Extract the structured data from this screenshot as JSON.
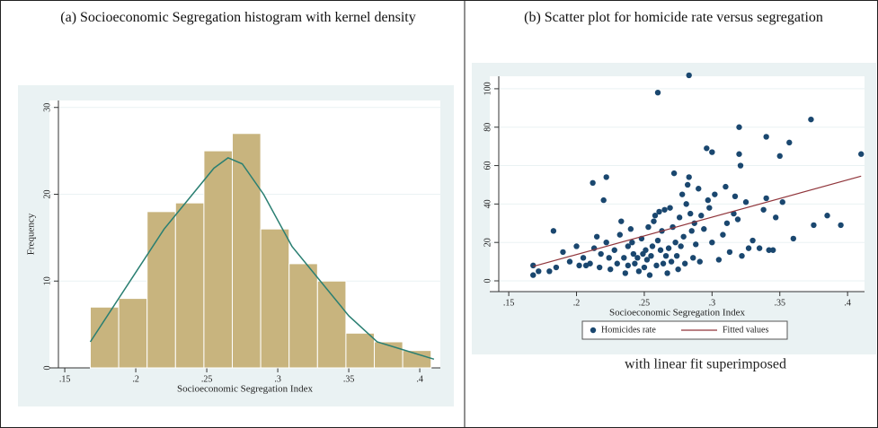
{
  "chart_data": [
    {
      "type": "histogram",
      "title": "(a)   Socioeconomic Segregation histogram with kernel density",
      "xlabel": "Socioeconomic Segregation Index",
      "ylabel": "Frequency",
      "bins": [
        0.168,
        0.188,
        0.208,
        0.228,
        0.248,
        0.268,
        0.288,
        0.308,
        0.328,
        0.348,
        0.368,
        0.388,
        0.408
      ],
      "values": [
        7,
        8,
        18,
        19,
        25,
        27,
        16,
        12,
        10,
        4,
        3,
        2
      ],
      "color": "#c8b47e",
      "density": {
        "color": "#2a7f72",
        "x": [
          0.168,
          0.18,
          0.2,
          0.22,
          0.24,
          0.255,
          0.265,
          0.275,
          0.29,
          0.31,
          0.33,
          0.35,
          0.37,
          0.39,
          0.41
        ],
        "values": [
          3,
          6,
          11,
          16,
          20,
          23,
          24.2,
          23.5,
          20,
          14,
          10,
          6,
          3,
          2,
          1
        ]
      },
      "xlim": [
        0.1392,
        0.4145
      ],
      "ylim": [
        0,
        30.8
      ],
      "xticks": [
        {
          "value": 0.15,
          "label": ".15"
        },
        {
          "value": 0.2,
          "label": ".2"
        },
        {
          "value": 0.25,
          "label": ".25"
        },
        {
          "value": 0.3,
          "label": ".3"
        },
        {
          "value": 0.35,
          "label": ".35"
        },
        {
          "value": 0.4,
          "label": ".4"
        }
      ],
      "yticks": [
        0,
        10,
        20,
        30
      ]
    },
    {
      "type": "scatter",
      "title": "(b)   Scatter plot for homicide rate versus segregation",
      "caption": "with linear fit superimposed",
      "xlabel": "Socioeconomic Segregation Index",
      "series": [
        {
          "name": "Homicides rate",
          "color": "#1a476f",
          "x": [
            0.168,
            0.168,
            0.172,
            0.18,
            0.183,
            0.185,
            0.19,
            0.195,
            0.2,
            0.202,
            0.205,
            0.207,
            0.21,
            0.212,
            0.213,
            0.215,
            0.217,
            0.218,
            0.22,
            0.222,
            0.222,
            0.224,
            0.225,
            0.228,
            0.23,
            0.232,
            0.233,
            0.235,
            0.236,
            0.238,
            0.238,
            0.24,
            0.241,
            0.242,
            0.243,
            0.245,
            0.246,
            0.248,
            0.249,
            0.25,
            0.251,
            0.252,
            0.253,
            0.254,
            0.255,
            0.256,
            0.257,
            0.258,
            0.259,
            0.26,
            0.26,
            0.261,
            0.262,
            0.263,
            0.264,
            0.265,
            0.266,
            0.267,
            0.268,
            0.269,
            0.27,
            0.271,
            0.272,
            0.273,
            0.274,
            0.275,
            0.276,
            0.277,
            0.278,
            0.279,
            0.28,
            0.281,
            0.282,
            0.283,
            0.283,
            0.284,
            0.285,
            0.286,
            0.287,
            0.288,
            0.29,
            0.291,
            0.292,
            0.294,
            0.296,
            0.297,
            0.298,
            0.3,
            0.3,
            0.302,
            0.305,
            0.308,
            0.31,
            0.311,
            0.313,
            0.316,
            0.317,
            0.319,
            0.32,
            0.32,
            0.321,
            0.322,
            0.325,
            0.327,
            0.33,
            0.335,
            0.338,
            0.34,
            0.34,
            0.342,
            0.345,
            0.347,
            0.35,
            0.352,
            0.357,
            0.36,
            0.373,
            0.375,
            0.385,
            0.395,
            0.41
          ],
          "values": [
            3,
            8,
            5,
            5,
            26,
            7,
            15,
            10,
            18,
            8,
            12,
            8,
            9,
            51,
            17,
            23,
            7,
            14,
            42,
            54,
            20,
            12,
            6,
            16,
            9,
            24,
            31,
            12,
            4,
            8,
            18,
            27,
            20,
            14,
            9,
            12,
            5,
            22,
            14,
            7,
            16,
            11,
            28,
            3,
            13,
            18,
            31,
            34,
            8,
            98,
            21,
            36,
            16,
            26,
            9,
            37,
            13,
            4,
            17,
            38,
            10,
            28,
            56,
            20,
            13,
            6,
            33,
            18,
            45,
            23,
            9,
            40,
            50,
            107,
            54,
            35,
            26,
            12,
            30,
            19,
            48,
            10,
            34,
            27,
            69,
            42,
            38,
            67,
            20,
            45,
            11,
            24,
            49,
            30,
            15,
            35,
            44,
            32,
            80,
            66,
            60,
            13,
            41,
            17,
            21,
            17,
            37,
            75,
            43,
            16,
            16,
            33,
            65,
            41,
            72,
            22,
            84,
            29,
            34,
            29,
            66
          ]
        },
        {
          "name": "Fitted values",
          "color": "#90353b",
          "x": [
            0.168,
            0.41
          ],
          "values": [
            7.5,
            54.5
          ]
        }
      ],
      "xlim": [
        0.136,
        0.4125
      ],
      "ylim": [
        -5.6,
        106.5
      ],
      "xticks": [
        {
          "value": 0.15,
          "label": ".15"
        },
        {
          "value": 0.2,
          "label": ".2"
        },
        {
          "value": 0.25,
          "label": ".25"
        },
        {
          "value": 0.3,
          "label": ".3"
        },
        {
          "value": 0.35,
          "label": ".35"
        },
        {
          "value": 0.4,
          "label": ".4"
        }
      ],
      "yticks": [
        0,
        20,
        40,
        60,
        80,
        100
      ]
    }
  ]
}
